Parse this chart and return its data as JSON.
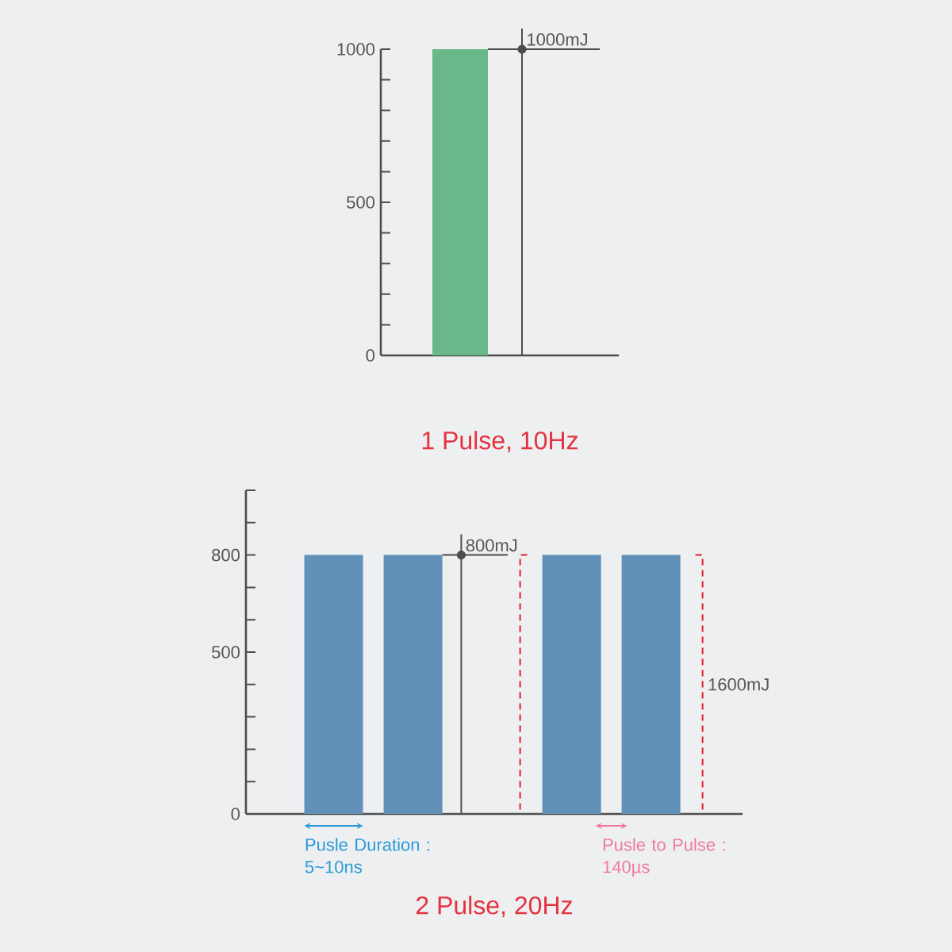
{
  "chart_data": [
    {
      "type": "bar",
      "title": "1 Pulse, 10Hz",
      "categories": [
        null
      ],
      "values": [
        1000
      ],
      "color": "#6ab889",
      "ylim": [
        0,
        1000
      ],
      "yticks": [
        0,
        {
          "value": 100,
          "label": null
        },
        {
          "value": 200,
          "label": null
        },
        {
          "value": 300,
          "label": null
        },
        {
          "value": 400,
          "label": null
        },
        500,
        {
          "value": 600,
          "label": null
        },
        {
          "value": 700,
          "label": null
        },
        {
          "value": 800,
          "label": null
        },
        {
          "value": 900,
          "label": null
        },
        1000
      ],
      "ref_lines": [
        {
          "axis": "y",
          "value": 1000,
          "label": "1000mJ",
          "color": "#4d4d4d"
        }
      ]
    },
    {
      "type": "bar",
      "title": "2 Pulse, 20Hz",
      "categories": [
        null,
        null,
        null,
        null,
        null
      ],
      "values": [
        800,
        800,
        null,
        800,
        800
      ],
      "color": "#6191b9",
      "ylim": [
        0,
        1000
      ],
      "yticks": [
        0,
        {
          "value": 100,
          "label": null
        },
        {
          "value": 200,
          "label": null
        },
        {
          "value": 300,
          "label": null
        },
        {
          "value": 400,
          "label": null
        },
        500,
        {
          "value": 600,
          "label": null
        },
        {
          "value": 700,
          "label": null
        },
        800,
        {
          "value": 900,
          "label": null
        },
        {
          "value": 1000,
          "label": null
        }
      ],
      "ref_lines": [
        {
          "axis": "y",
          "value": 800,
          "label": "800mJ",
          "color": "#4d4d4d"
        }
      ],
      "annotations": [
        "1600mJ",
        "Pusle Duration : 5~10ns",
        "Pusle to Pulse : 140µs"
      ]
    }
  ]
}
